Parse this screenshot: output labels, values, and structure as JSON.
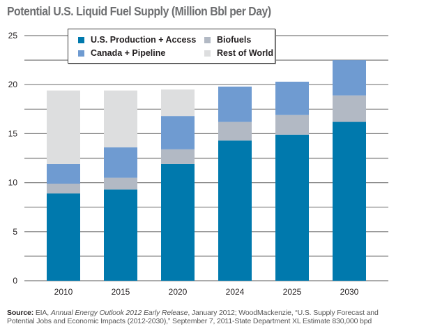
{
  "title": "Potential U.S. Liquid Fuel Supply (Million Bbl per Day)",
  "chart_data": {
    "type": "bar",
    "stacked": true,
    "title": "Potential U.S. Liquid Fuel Supply (Million Bbl per Day)",
    "xlabel": "",
    "ylabel": "",
    "categories": [
      "2010",
      "2015",
      "2020",
      "2024",
      "2025",
      "2030"
    ],
    "ylim": [
      0,
      25
    ],
    "yticks": [
      0,
      5,
      10,
      15,
      20,
      25
    ],
    "minor_gridlines": [
      2.5,
      7.5,
      12.5,
      17.5,
      22.5
    ],
    "grid": true,
    "legend_position": "top-left-inside",
    "series": [
      {
        "name": "U.S. Production + Access",
        "color": "#0079ad",
        "values": [
          8.9,
          9.3,
          11.9,
          14.3,
          14.9,
          16.2
        ]
      },
      {
        "name": "Biofuels",
        "color": "#b2b9c4",
        "values": [
          1.0,
          1.2,
          1.5,
          1.9,
          2.0,
          2.7
        ]
      },
      {
        "name": "Canada + Pipeline",
        "color": "#6f9bd1",
        "values": [
          2.0,
          3.1,
          3.4,
          3.6,
          3.4,
          3.6
        ]
      },
      {
        "name": "Rest of World",
        "color": "#dddedf",
        "values": [
          7.5,
          5.8,
          2.7,
          0,
          0,
          0
        ]
      }
    ]
  },
  "legend": {
    "items": [
      {
        "label": "U.S. Production + Access",
        "color": "#0079ad"
      },
      {
        "label": "Biofuels",
        "color": "#b2b9c4"
      },
      {
        "label": "Canada + Pipeline",
        "color": "#6f9bd1"
      },
      {
        "label": "Rest of World",
        "color": "#dddedf"
      }
    ]
  },
  "source": {
    "label": "Source:",
    "part1": " EIA, ",
    "italic": "Annual Energy Outlook 2012 Early Release",
    "part2": ", January 2012; WoodMackenzie, “U.S. Supply Forecast and",
    "line2": "Potential Jobs and Economic Impacts (2012-2030),” September 7, 2011-State Department XL Estimate 830,000 bpd"
  }
}
